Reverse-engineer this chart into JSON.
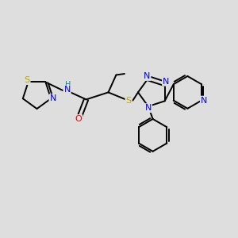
{
  "bg_color": "#dedede",
  "bond_color": "#000000",
  "bond_width": 1.4,
  "atom_colors": {
    "S": "#b8a800",
    "N": "#0000ee",
    "O": "#ee0000",
    "H": "#008888",
    "C": "#000000"
  },
  "font_size": 7.5,
  "title": "",
  "xlim": [
    0,
    10
  ],
  "ylim": [
    0,
    10
  ]
}
